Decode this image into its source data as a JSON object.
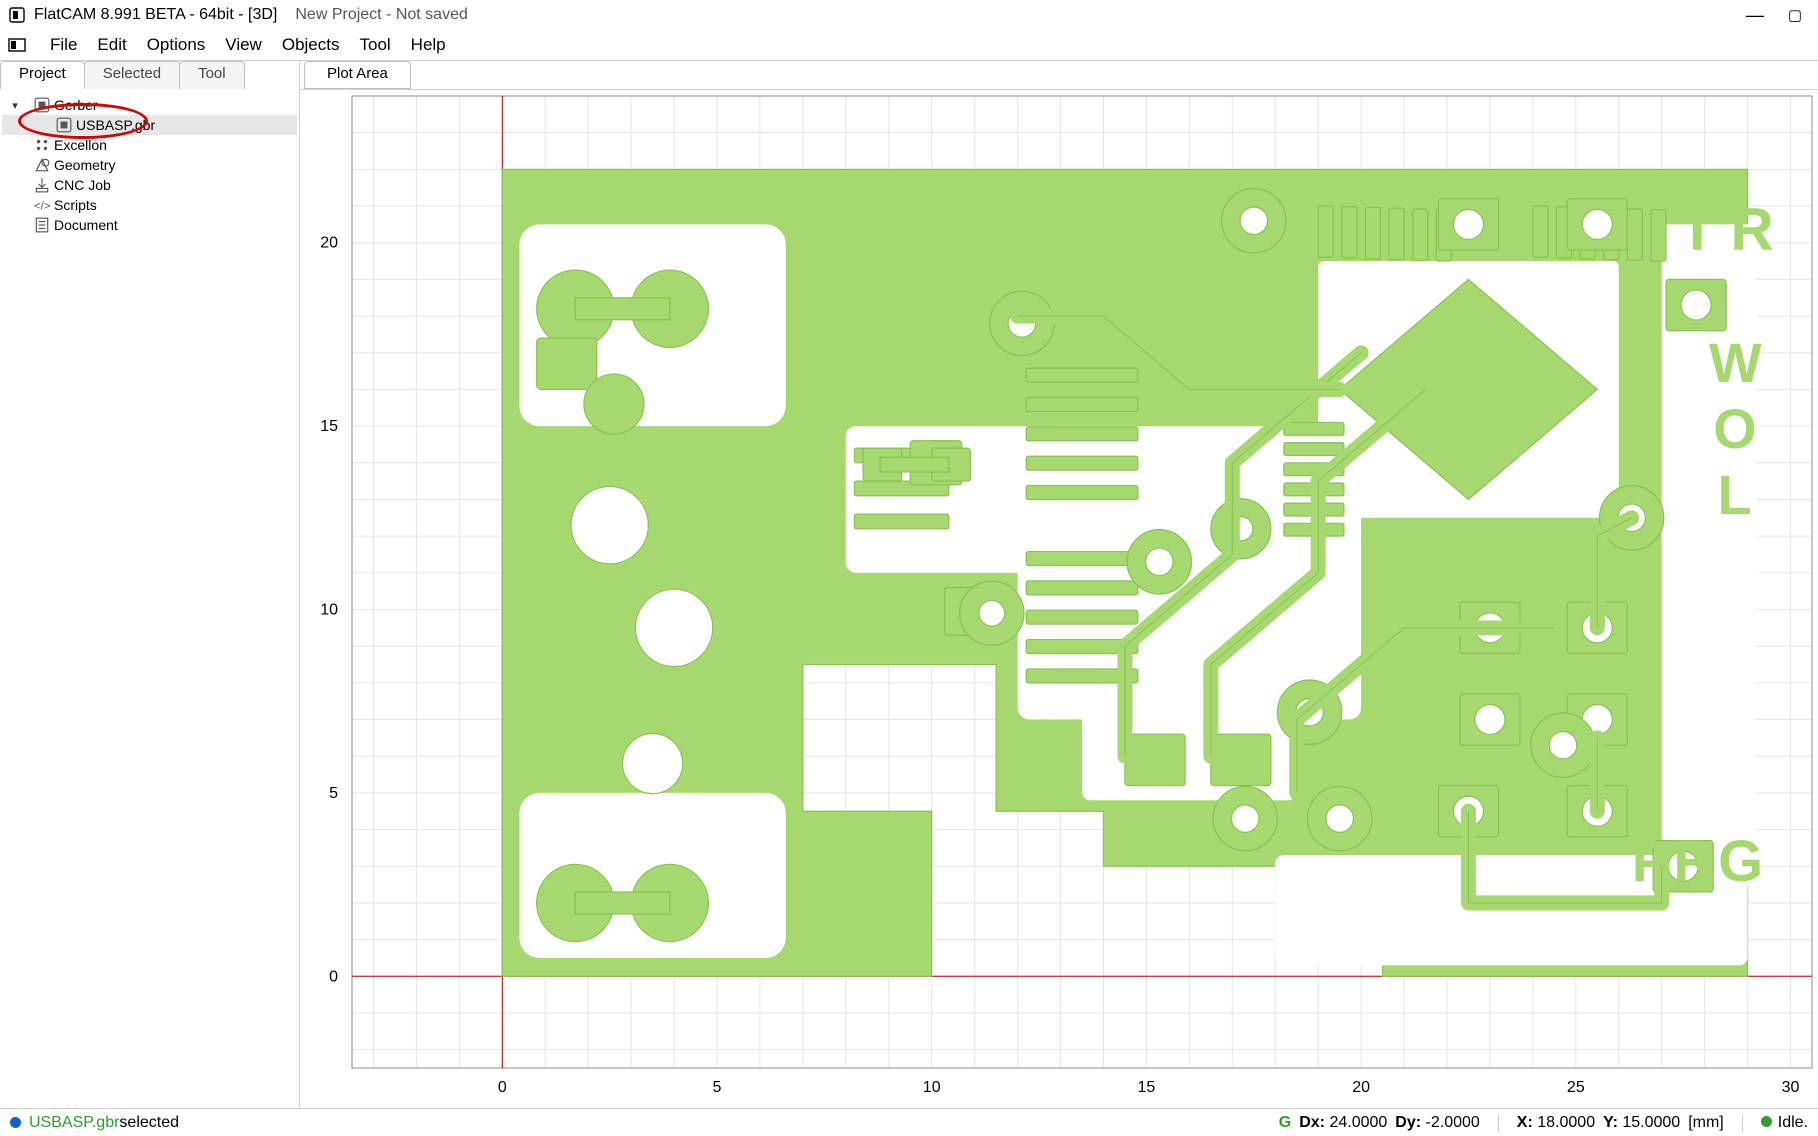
{
  "title": {
    "app": "FlatCAM 8.991 BETA - 64bit - [3D]",
    "project": "New Project - Not saved"
  },
  "menu": [
    "File",
    "Edit",
    "Options",
    "View",
    "Objects",
    "Tool",
    "Help"
  ],
  "left_tabs": [
    {
      "label": "Project",
      "active": true
    },
    {
      "label": "Selected",
      "active": false
    },
    {
      "label": "Tool",
      "active": false
    }
  ],
  "tree": [
    {
      "indent": 0,
      "expander": "▾",
      "icon": "gerber",
      "label": "Gerber",
      "selected": false
    },
    {
      "indent": 1,
      "expander": "",
      "icon": "gerber",
      "label": "USBASP.gbr",
      "selected": true
    },
    {
      "indent": 0,
      "expander": "",
      "icon": "excellon",
      "label": "Excellon",
      "selected": false
    },
    {
      "indent": 0,
      "expander": "",
      "icon": "geometry",
      "label": "Geometry",
      "selected": false
    },
    {
      "indent": 0,
      "expander": "",
      "icon": "cnc",
      "label": "CNC Job",
      "selected": false
    },
    {
      "indent": 0,
      "expander": "",
      "icon": "script",
      "label": "Scripts",
      "selected": false
    },
    {
      "indent": 0,
      "expander": "",
      "icon": "doc",
      "label": "Document",
      "selected": false
    }
  ],
  "annotation_circle": true,
  "right_tabs": [
    {
      "label": "Plot Area",
      "active": true
    }
  ],
  "plot": {
    "xlim": [
      -3.5,
      30.5
    ],
    "ylim": [
      -2.5,
      24
    ],
    "xtick_step": 5,
    "ytick_step": 5,
    "grid_minor": 1,
    "axis_color": "#b80000",
    "grid_color": "#e6e6e6",
    "bg_color": "#ffffff",
    "tick_font_size": 16,
    "tick_color": "#000000",
    "copper_color": "#a5d96f",
    "copper_stroke": "#8cc054"
  },
  "status": {
    "dot_color": "#1060d0",
    "selection_name": "USBASP.gbr",
    "selection_suffix": " selected",
    "grid_label": "G",
    "dx_label": "Dx:",
    "dx_value": "24.0000",
    "dy_label": "Dy:",
    "dy_value": "-2.0000",
    "x_label": "X:",
    "x_value": "18.0000",
    "y_label": "Y:",
    "y_value": "15.0000",
    "units": "[mm]",
    "idle_label": "Idle."
  }
}
